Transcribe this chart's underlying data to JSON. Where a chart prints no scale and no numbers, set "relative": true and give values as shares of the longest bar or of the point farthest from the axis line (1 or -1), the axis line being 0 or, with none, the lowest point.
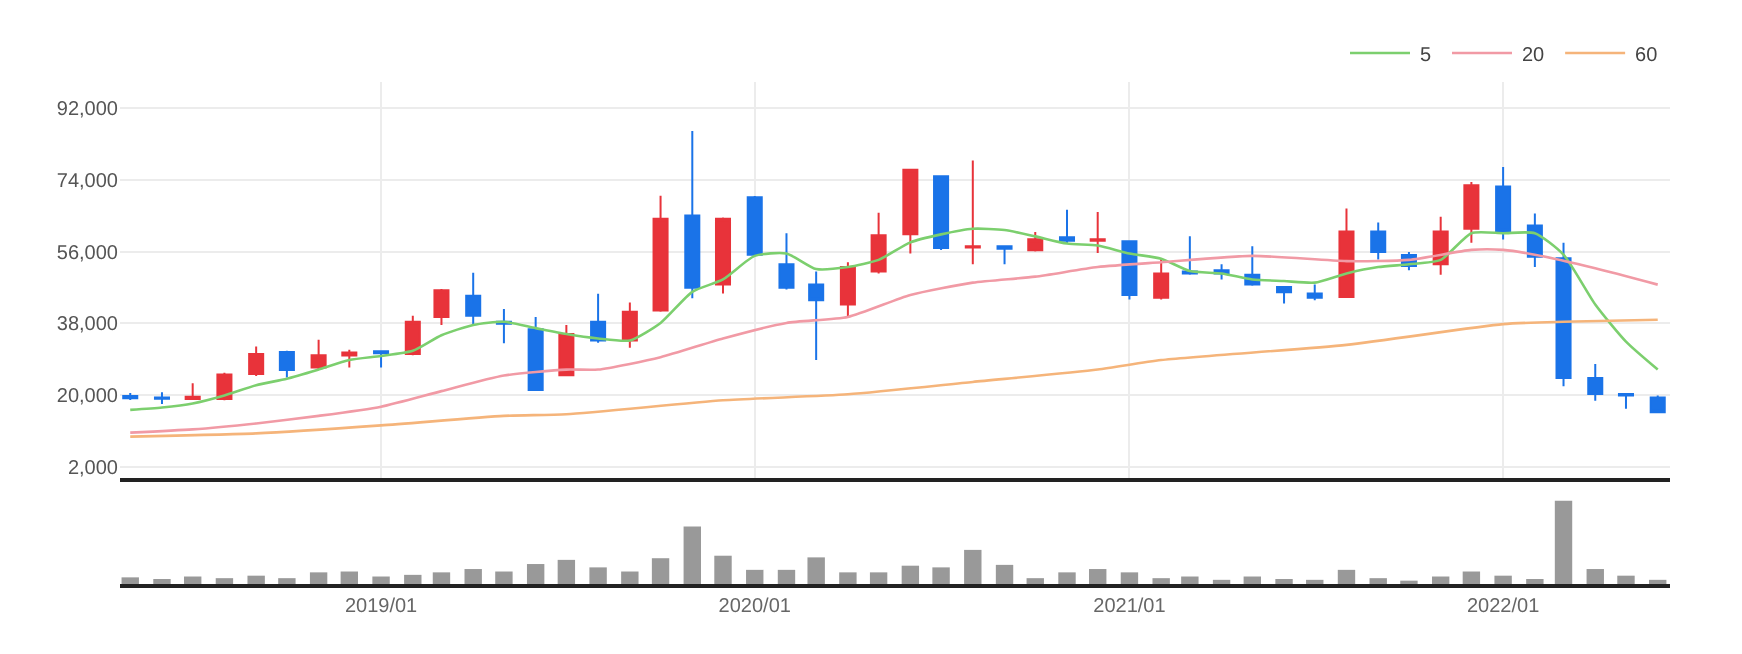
{
  "chart_data": [
    {
      "type": "candlestick",
      "x": [
        "2018-05",
        "2018-06",
        "2018-07",
        "2018-08",
        "2018-09",
        "2018-10",
        "2018-11",
        "2018-12",
        "2019-01",
        "2019-02",
        "2019-03",
        "2019-04",
        "2019-05",
        "2019-06",
        "2019-07",
        "2019-08",
        "2019-09",
        "2019-10",
        "2019-11",
        "2019-12",
        "2020-01",
        "2020-02",
        "2020-03",
        "2020-04",
        "2020-05",
        "2020-06",
        "2020-07",
        "2020-08",
        "2020-09",
        "2020-10",
        "2020-11",
        "2020-12",
        "2021-01",
        "2021-02",
        "2021-03",
        "2021-04",
        "2021-05",
        "2021-06",
        "2021-07",
        "2021-08",
        "2021-09",
        "2021-10",
        "2021-11",
        "2021-12",
        "2022-01",
        "2022-02",
        "2022-03",
        "2022-04",
        "2022-05",
        "2022-06"
      ],
      "ohlc": [
        [
          19800,
          20500,
          18800,
          19200
        ],
        [
          19400,
          20700,
          17800,
          19100
        ],
        [
          19000,
          23000,
          18900,
          19600
        ],
        [
          19000,
          25600,
          18700,
          25200
        ],
        [
          25300,
          32200,
          24800,
          30300
        ],
        [
          30800,
          31100,
          24400,
          26300
        ],
        [
          26900,
          33900,
          26400,
          30000
        ],
        [
          29900,
          31400,
          26900,
          30700
        ],
        [
          31000,
          31200,
          26900,
          30500
        ],
        [
          30300,
          39900,
          30000,
          38400
        ],
        [
          39600,
          46600,
          37600,
          46300
        ],
        [
          44900,
          50700,
          37300,
          39900
        ],
        [
          38400,
          41600,
          33000,
          37900
        ],
        [
          36500,
          39600,
          21000,
          21300
        ],
        [
          25000,
          37600,
          24700,
          35300
        ],
        [
          38400,
          45400,
          33100,
          33700
        ],
        [
          33700,
          43200,
          31900,
          40900
        ],
        [
          41200,
          70000,
          40900,
          64200
        ],
        [
          65000,
          86200,
          44300,
          46900
        ],
        [
          47700,
          64500,
          45500,
          64200
        ],
        [
          69600,
          69900,
          54900,
          55200
        ],
        [
          52800,
          60600,
          46500,
          46900
        ],
        [
          47700,
          51000,
          28800,
          43800
        ],
        [
          42700,
          53300,
          39600,
          52100
        ],
        [
          51000,
          65700,
          50500,
          60100
        ],
        [
          60300,
          76500,
          55500,
          76500
        ],
        [
          74900,
          74900,
          56400,
          56900
        ],
        [
          57000,
          78800,
          52800,
          57300
        ],
        [
          57300,
          57300,
          52800,
          56700
        ],
        [
          56300,
          60900,
          56000,
          59100
        ],
        [
          59600,
          66500,
          57900,
          58700
        ],
        [
          58700,
          65900,
          55600,
          59100
        ],
        [
          58600,
          58600,
          44000,
          45100
        ],
        [
          44400,
          54400,
          44000,
          50500
        ],
        [
          51000,
          59800,
          50200,
          50500
        ],
        [
          51300,
          52800,
          49000,
          50500
        ],
        [
          50200,
          57300,
          47400,
          47700
        ],
        [
          47100,
          47100,
          43000,
          45800
        ],
        [
          45500,
          47700,
          43800,
          44400
        ],
        [
          44600,
          66800,
          44600,
          61000
        ],
        [
          61000,
          63300,
          54000,
          55900
        ],
        [
          55100,
          55900,
          51300,
          52400
        ],
        [
          52800,
          64700,
          50200,
          61000
        ],
        [
          61700,
          73400,
          58200,
          72600
        ],
        [
          72300,
          77200,
          59000,
          61000
        ],
        [
          62500,
          65500,
          52100,
          54700
        ],
        [
          54300,
          58200,
          22200,
          24300
        ],
        [
          24300,
          27800,
          18600,
          20300
        ],
        [
          20300,
          20300,
          16600,
          19900
        ],
        [
          19400,
          19900,
          15700,
          15700
        ]
      ],
      "colors": [
        "#1a73e8",
        "#1a73e8",
        "#e8333a",
        "#e8333a",
        "#e8333a",
        "#1a73e8",
        "#e8333a",
        "#e8333a",
        "#1a73e8",
        "#e8333a",
        "#e8333a",
        "#1a73e8",
        "#1a73e8",
        "#1a73e8",
        "#e8333a",
        "#1a73e8",
        "#e8333a",
        "#e8333a",
        "#1a73e8",
        "#e8333a",
        "#1a73e8",
        "#1a73e8",
        "#1a73e8",
        "#e8333a",
        "#e8333a",
        "#e8333a",
        "#1a73e8",
        "#e8333a",
        "#1a73e8",
        "#e8333a",
        "#1a73e8",
        "#e8333a",
        "#1a73e8",
        "#e8333a",
        "#1a73e8",
        "#1a73e8",
        "#1a73e8",
        "#1a73e8",
        "#1a73e8",
        "#e8333a",
        "#1a73e8",
        "#1a73e8",
        "#e8333a",
        "#e8333a",
        "#1a73e8",
        "#1a73e8",
        "#1a73e8",
        "#1a73e8",
        "#1a73e8",
        "#1a73e8"
      ],
      "series": [
        {
          "name": "5",
          "type": "line",
          "color": "#7ccf6e",
          "x": [
            "2018-05",
            "2018-06",
            "2018-07",
            "2018-08",
            "2018-09",
            "2018-10",
            "2018-11",
            "2018-12",
            "2019-01",
            "2019-02",
            "2019-03",
            "2019-04",
            "2019-05",
            "2019-06",
            "2019-07",
            "2019-08",
            "2019-09",
            "2019-10",
            "2019-11",
            "2019-12",
            "2020-01",
            "2020-02",
            "2020-03",
            "2020-04",
            "2020-05",
            "2020-06",
            "2020-07",
            "2020-08",
            "2020-09",
            "2020-10",
            "2020-11",
            "2020-12",
            "2021-01",
            "2021-02",
            "2021-03",
            "2021-04",
            "2021-05",
            "2021-06",
            "2021-07",
            "2021-08",
            "2021-09",
            "2021-10",
            "2021-11",
            "2021-12",
            "2022-01",
            "2022-02",
            "2022-03",
            "2022-04",
            "2022-05",
            "2022-06"
          ],
          "values": [
            16300,
            16900,
            17900,
            19900,
            22500,
            24100,
            26400,
            28800,
            29800,
            31100,
            35000,
            37600,
            38400,
            36800,
            35300,
            34200,
            33700,
            38100,
            45900,
            49000,
            54900,
            55500,
            51600,
            52100,
            53900,
            58300,
            60300,
            61700,
            61400,
            59800,
            58000,
            57500,
            55500,
            54200,
            51100,
            50500,
            49000,
            48600,
            48200,
            50500,
            52100,
            52800,
            53900,
            60600,
            60600,
            60600,
            55200,
            42700,
            33400,
            26400
          ]
        },
        {
          "name": "20",
          "type": "line",
          "color": "#f19aa5",
          "x": [
            "2018-05",
            "2018-07",
            "2018-09",
            "2018-11",
            "2019-01",
            "2019-03",
            "2019-05",
            "2019-07",
            "2019-08",
            "2019-10",
            "2019-12",
            "2020-02",
            "2020-04",
            "2020-06",
            "2020-08",
            "2020-10",
            "2020-12",
            "2021-02",
            "2021-05",
            "2021-08",
            "2021-10",
            "2021-12",
            "2022-01",
            "2022-02",
            "2022-04",
            "2022-06"
          ],
          "values": [
            10600,
            11400,
            12900,
            14800,
            17100,
            21000,
            24900,
            26400,
            26400,
            29500,
            34200,
            38100,
            39600,
            45100,
            48200,
            49700,
            52100,
            53300,
            54900,
            53600,
            53900,
            56400,
            56400,
            55200,
            51800,
            47700
          ]
        },
        {
          "name": "60",
          "type": "line",
          "color": "#f5b47a",
          "x": [
            "2018-05",
            "2018-09",
            "2019-01",
            "2019-05",
            "2019-07",
            "2019-12",
            "2020-04",
            "2020-08",
            "2020-12",
            "2021-02",
            "2021-08",
            "2022-01",
            "2022-03",
            "2022-06"
          ],
          "values": [
            9600,
            10400,
            12400,
            14800,
            15200,
            18700,
            20200,
            23300,
            26400,
            28800,
            32600,
            37800,
            38400,
            38900
          ]
        }
      ],
      "xlim": [
        "2018-04-21",
        "2022-06-13"
      ],
      "xticks": [
        {
          "value": "2019-01",
          "label": null
        },
        {
          "value": "2020-01",
          "label": null
        },
        {
          "value": "2021-01",
          "label": null
        },
        {
          "value": "2022-01",
          "label": null
        }
      ],
      "ylim": [
        -800,
        98500
      ],
      "yticks": [
        {
          "value": 2000,
          "label": "2,000"
        },
        {
          "value": 20000,
          "label": "20,000"
        },
        {
          "value": 38000,
          "label": "38,000"
        },
        {
          "value": 56000,
          "label": "56,000"
        },
        {
          "value": 74000,
          "label": "74,000"
        },
        {
          "value": 92000,
          "label": "92,000"
        }
      ],
      "tick_labels": "y",
      "grid": true,
      "legend": "top right"
    },
    {
      "type": "bar",
      "relative": true,
      "color": "#999999",
      "x": [
        "2018-05",
        "2018-06",
        "2018-07",
        "2018-08",
        "2018-09",
        "2018-10",
        "2018-11",
        "2018-12",
        "2019-01",
        "2019-02",
        "2019-03",
        "2019-04",
        "2019-05",
        "2019-06",
        "2019-07",
        "2019-08",
        "2019-09",
        "2019-10",
        "2019-11",
        "2019-12",
        "2020-01",
        "2020-02",
        "2020-03",
        "2020-04",
        "2020-05",
        "2020-06",
        "2020-07",
        "2020-08",
        "2020-09",
        "2020-10",
        "2020-11",
        "2020-12",
        "2021-01",
        "2021-02",
        "2021-03",
        "2021-04",
        "2021-05",
        "2021-06",
        "2021-07",
        "2021-08",
        "2021-09",
        "2021-10",
        "2021-11",
        "2021-12",
        "2022-01",
        "2022-02",
        "2022-03",
        "2022-04",
        "2022-05",
        "2022-06"
      ],
      "values": [
        0.08,
        0.06,
        0.09,
        0.07,
        0.1,
        0.07,
        0.14,
        0.15,
        0.09,
        0.11,
        0.14,
        0.18,
        0.15,
        0.24,
        0.29,
        0.2,
        0.15,
        0.31,
        0.69,
        0.34,
        0.17,
        0.17,
        0.32,
        0.14,
        0.14,
        0.22,
        0.2,
        0.41,
        0.23,
        0.07,
        0.14,
        0.18,
        0.14,
        0.07,
        0.09,
        0.05,
        0.09,
        0.06,
        0.05,
        0.17,
        0.07,
        0.03,
        0.09,
        0.15,
        0.1,
        0.06,
        1,
        0.18,
        0.1,
        0.05
      ],
      "xlim": [
        "2018-04-21",
        "2022-06-13"
      ],
      "xticks": [
        {
          "value": "2019-01",
          "label": "2019/01"
        },
        {
          "value": "2020-01",
          "label": "2020/01"
        },
        {
          "value": "2021-01",
          "label": "2021/01"
        },
        {
          "value": "2022-01",
          "label": "2022/01"
        }
      ],
      "tick_labels": "x"
    }
  ]
}
